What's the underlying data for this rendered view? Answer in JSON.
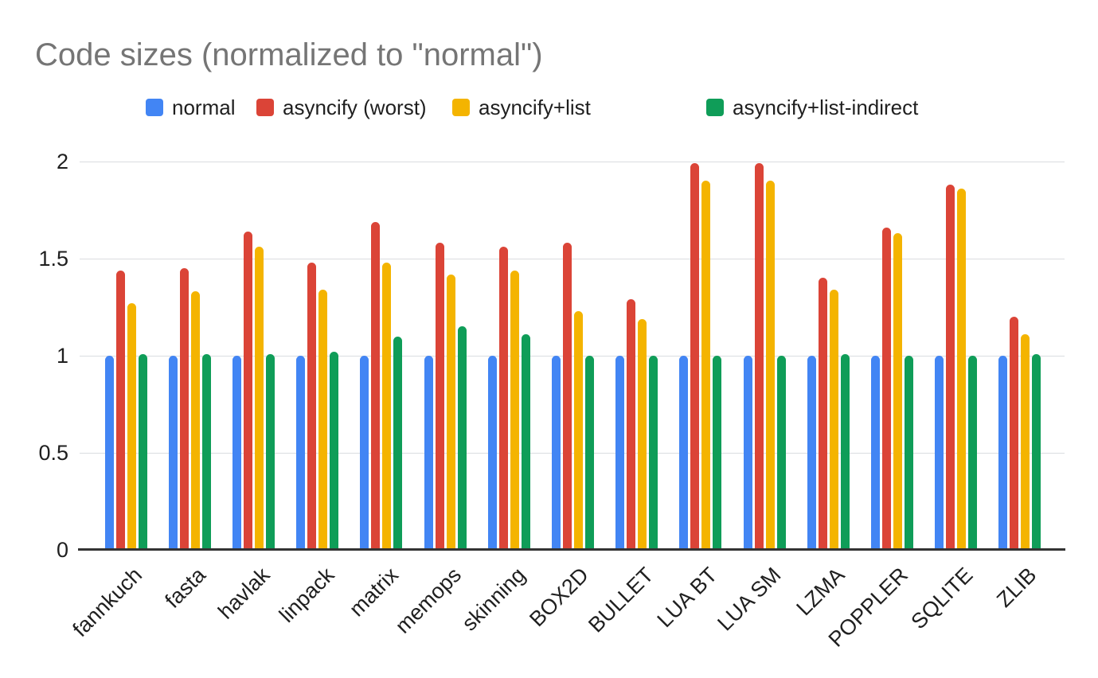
{
  "chart_data": {
    "type": "bar",
    "title": "Code sizes (normalized to \"normal\")",
    "title_color": "#757575",
    "categories": [
      "fannkuch",
      "fasta",
      "havlak",
      "linpack",
      "matrix",
      "memops",
      "skinning",
      "BOX2D",
      "BULLET",
      "LUA BT",
      "LUA SM",
      "LZMA",
      "POPPLER",
      "SQLITE",
      "ZLIB"
    ],
    "series": [
      {
        "name": "normal",
        "color": "#4285F4",
        "values": [
          1.0,
          1.0,
          1.0,
          1.0,
          1.0,
          1.0,
          1.0,
          1.0,
          1.0,
          1.0,
          1.0,
          1.0,
          1.0,
          1.0,
          1.0
        ]
      },
      {
        "name": "asyncify (worst)",
        "color": "#DB4437",
        "values": [
          1.44,
          1.45,
          1.64,
          1.48,
          1.69,
          1.58,
          1.56,
          1.58,
          1.29,
          1.99,
          1.99,
          1.4,
          1.66,
          1.88,
          1.2
        ]
      },
      {
        "name": "asyncify+list",
        "color": "#F4B400",
        "values": [
          1.27,
          1.33,
          1.56,
          1.34,
          1.48,
          1.42,
          1.44,
          1.23,
          1.19,
          1.9,
          1.9,
          1.34,
          1.63,
          1.86,
          1.11
        ]
      },
      {
        "name": "asyncify+list-indirect",
        "color": "#0F9D58",
        "values": [
          1.01,
          1.01,
          1.01,
          1.02,
          1.1,
          1.15,
          1.11,
          1.0,
          1.0,
          1.0,
          1.0,
          1.01,
          1.0,
          1.0,
          1.01
        ]
      }
    ],
    "ylim": [
      0,
      2.05
    ],
    "yticks": [
      0,
      0.5,
      1,
      1.5,
      2
    ],
    "ytick_labels": [
      "0",
      "0.5",
      "1",
      "1.5",
      "2"
    ],
    "grid": true,
    "gridline_color": "#dadce0",
    "axis_line_color": "#333333",
    "legend_position": "top",
    "xlabel": "",
    "ylabel": ""
  }
}
